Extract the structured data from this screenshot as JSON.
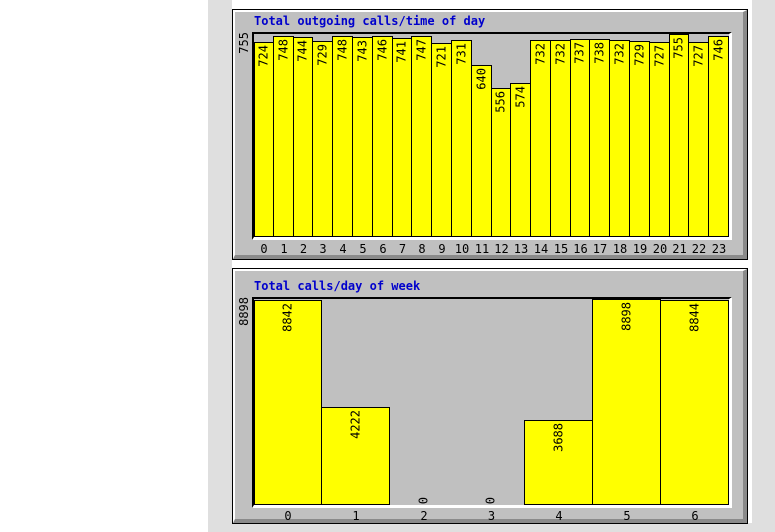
{
  "page": {
    "background": "#ffffff",
    "scrollbar_strip_color": "#dfdfdf"
  },
  "colors": {
    "bar_fill": "#ffff00",
    "bar_border": "#000000",
    "panel_bg": "#c0c0c0",
    "plot_bg": "#c0c0c0",
    "title_text": "#0000cc",
    "axis_text": "#000000",
    "panel_highlight": "#ffffff",
    "panel_shadow": "#8a8a8a"
  },
  "chart_data": [
    {
      "type": "bar",
      "title": "Total outgoing calls/time of day",
      "xlabel": "",
      "ylabel": "",
      "ymax": 755,
      "ymax_label": "755",
      "ylim": [
        0,
        755
      ],
      "grid": false,
      "legend": false,
      "bar_style": "adjacent, yellow fill, black outline, rotated value labels inside bar tops",
      "categories": [
        "0",
        "1",
        "2",
        "3",
        "4",
        "5",
        "6",
        "7",
        "8",
        "9",
        "10",
        "11",
        "12",
        "13",
        "14",
        "15",
        "16",
        "17",
        "18",
        "19",
        "20",
        "21",
        "22",
        "23"
      ],
      "values": [
        724,
        748,
        744,
        729,
        748,
        743,
        746,
        741,
        747,
        721,
        731,
        640,
        556,
        574,
        732,
        732,
        737,
        738,
        732,
        729,
        727,
        755,
        727,
        746
      ]
    },
    {
      "type": "bar",
      "title": "Total calls/day of week",
      "xlabel": "",
      "ylabel": "",
      "ymax": 8898,
      "ymax_label": "8898",
      "ylim": [
        0,
        8898
      ],
      "grid": false,
      "legend": false,
      "bar_style": "adjacent, yellow fill, black outline, rotated value labels inside bar tops, zero values shown as rotated 0 at baseline",
      "categories": [
        "0",
        "1",
        "2",
        "3",
        "4",
        "5",
        "6"
      ],
      "values": [
        8842,
        4222,
        0,
        0,
        3688,
        8898,
        8844
      ]
    }
  ]
}
